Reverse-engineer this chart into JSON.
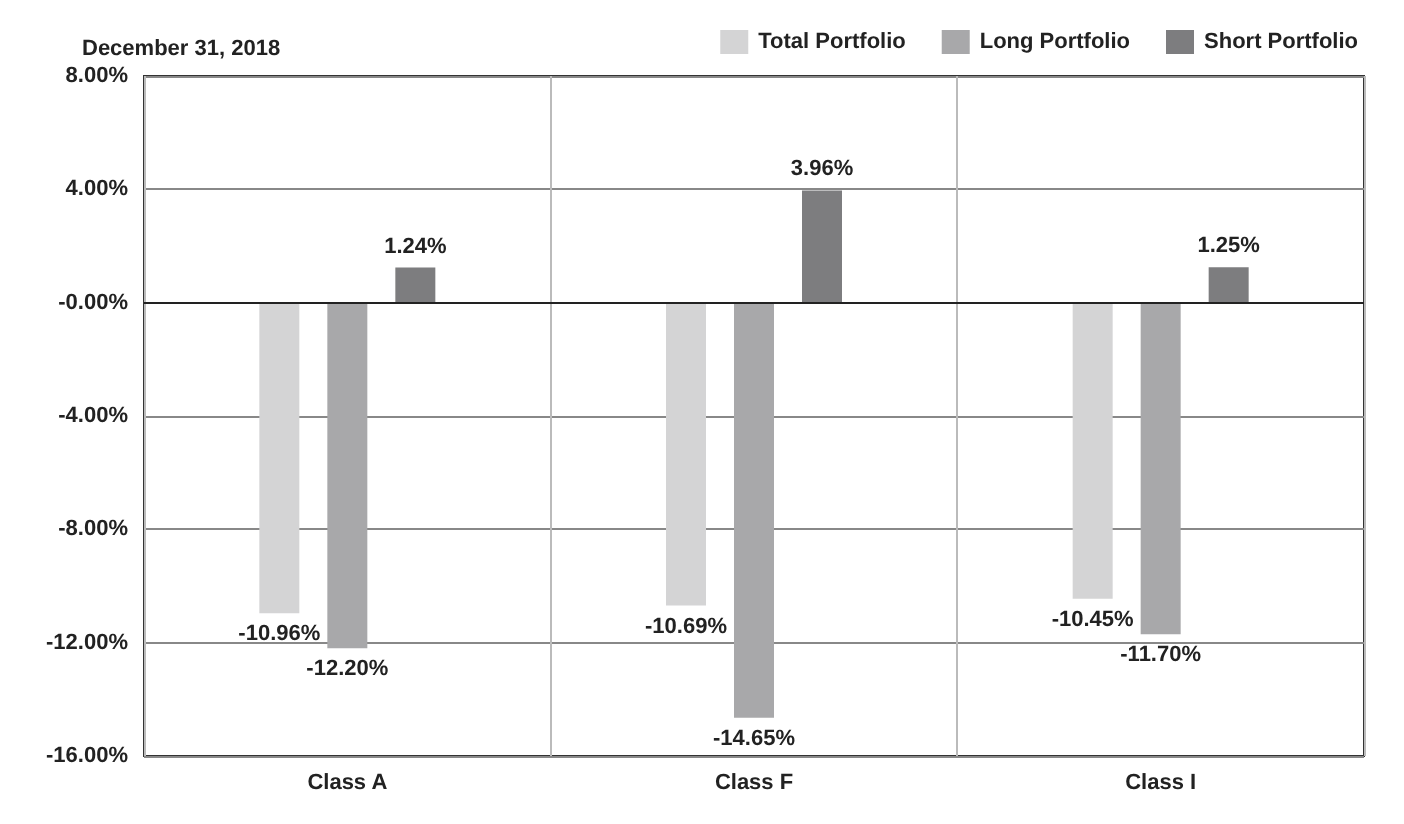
{
  "chart_data": {
    "type": "bar",
    "title": "December 31, 2018",
    "categories": [
      "Class A",
      "Class F",
      "Class I"
    ],
    "series": [
      {
        "name": "Total Portfolio",
        "color": "#d4d4d5",
        "values": [
          -10.96,
          -10.69,
          -10.45
        ]
      },
      {
        "name": "Long Portfolio",
        "color": "#a8a8aa",
        "values": [
          -12.2,
          -14.65,
          -11.7
        ]
      },
      {
        "name": "Short Portfolio",
        "color": "#7d7d7f",
        "values": [
          1.24,
          3.96,
          1.25
        ]
      }
    ],
    "ylim": [
      -16,
      8
    ],
    "yticks": [
      {
        "value": -16,
        "label": "-16.00%"
      },
      {
        "value": -12,
        "label": "-12.00%"
      },
      {
        "value": -8,
        "label": "-8.00%"
      },
      {
        "value": -4,
        "label": "-4.00%"
      },
      {
        "value": 0,
        "label": "-0.00%"
      },
      {
        "value": 4,
        "label": "4.00%"
      },
      {
        "value": 8,
        "label": "8.00%"
      }
    ],
    "value_labels": [
      [
        "-10.96%",
        "-10.69%",
        "-10.45%"
      ],
      [
        "-12.20%",
        "-14.65%",
        "-11.70%"
      ],
      [
        "1.24%",
        "3.96%",
        "1.25%"
      ]
    ],
    "grid": true,
    "legend": "top right"
  }
}
